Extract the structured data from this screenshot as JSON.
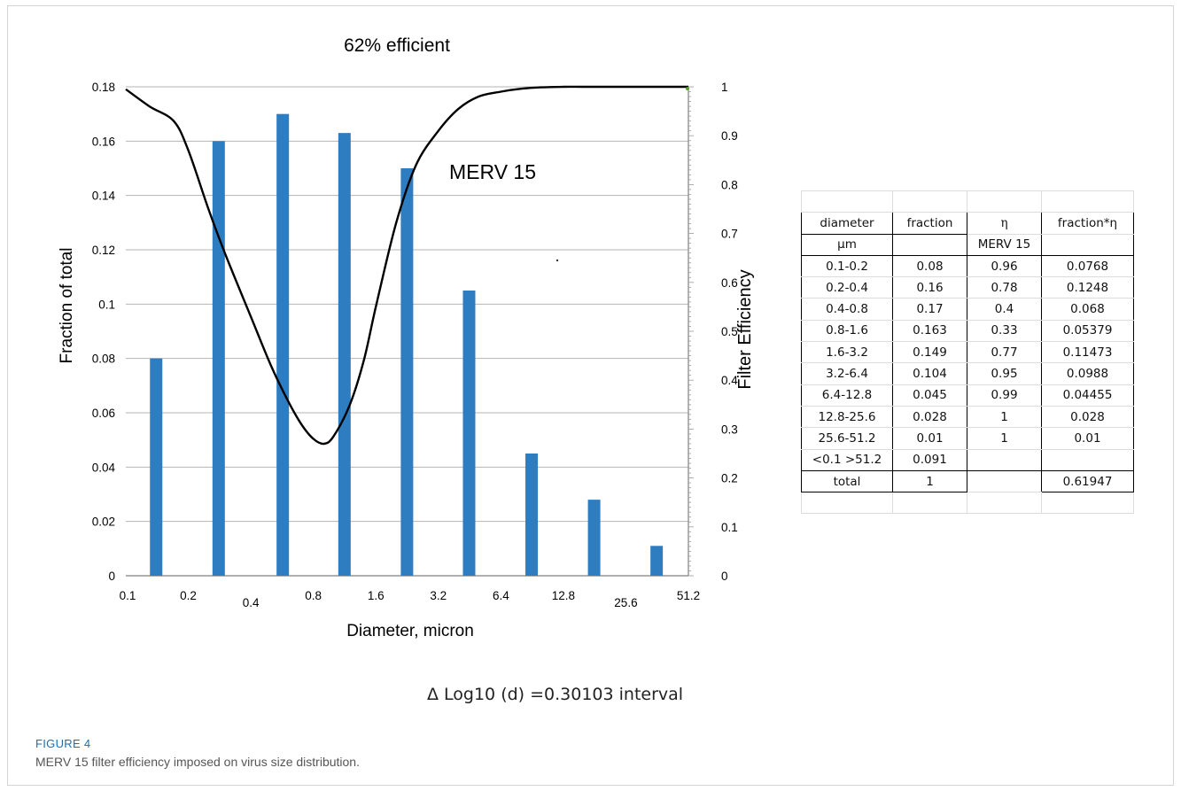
{
  "chart_data": {
    "type": "bar",
    "title": "62% efficient",
    "xlabel": "Diameter, micron",
    "ylabel": "Fraction of total",
    "y2label": "Filter Efficiency",
    "x_ticks": [
      "0.1",
      "0.2",
      "0.4",
      "0.8",
      "1.6",
      "3.2",
      "6.4",
      "12.8",
      "25.6",
      "51.2"
    ],
    "ylim": [
      0,
      0.18
    ],
    "y_ticks": [
      "0",
      "0.02",
      "0.04",
      "0.06",
      "0.08",
      "0.1",
      "0.12",
      "0.14",
      "0.16",
      "0.18"
    ],
    "y2lim": [
      0,
      1
    ],
    "y2_ticks": [
      "0",
      "0.1",
      "0.2",
      "0.3",
      "0.4",
      "0.5",
      "0.6",
      "0.7",
      "0.8",
      "0.9",
      "1"
    ],
    "grid": true,
    "series": [
      {
        "type": "bar",
        "color": "#2e7dc1",
        "x": [
          0.14,
          0.28,
          0.57,
          1.13,
          2.26,
          4.5,
          9.0,
          18.0,
          36.0
        ],
        "values": [
          0.08,
          0.16,
          0.17,
          0.163,
          0.15,
          0.105,
          0.045,
          0.028,
          0.011
        ]
      },
      {
        "type": "line",
        "name": "MERV 15",
        "axis": "y2",
        "color": "#000000",
        "x": [
          0.1,
          0.13,
          0.17,
          0.2,
          0.25,
          0.3,
          0.4,
          0.5,
          0.6,
          0.7,
          0.8,
          0.9,
          1.0,
          1.2,
          1.4,
          1.6,
          2.0,
          2.5,
          3.2,
          4.0,
          5.0,
          6.4,
          8.0,
          10.0,
          12.8,
          16.0,
          25.6,
          51.2
        ],
        "values": [
          0.995,
          0.96,
          0.93,
          0.87,
          0.75,
          0.66,
          0.53,
          0.43,
          0.36,
          0.31,
          0.28,
          0.27,
          0.285,
          0.35,
          0.44,
          0.55,
          0.72,
          0.84,
          0.91,
          0.955,
          0.98,
          0.99,
          0.996,
          0.999,
          1.0,
          1.0,
          1.0,
          1.0
        ]
      }
    ]
  },
  "table": {
    "rows": [
      [
        "diameter",
        "fraction",
        "η",
        "fraction*η"
      ],
      [
        "µm",
        "",
        "MERV 15",
        ""
      ],
      [
        "0.1-0.2",
        "0.08",
        "0.96",
        "0.0768"
      ],
      [
        "0.2-0.4",
        "0.16",
        "0.78",
        "0.1248"
      ],
      [
        "0.4-0.8",
        "0.17",
        "0.4",
        "0.068"
      ],
      [
        "0.8-1.6",
        "0.163",
        "0.33",
        "0.05379"
      ],
      [
        "1.6-3.2",
        "0.149",
        "0.77",
        "0.11473"
      ],
      [
        "3.2-6.4",
        "0.104",
        "0.95",
        "0.0988"
      ],
      [
        "6.4-12.8",
        "0.045",
        "0.99",
        "0.04455"
      ],
      [
        "12.8-25.6",
        "0.028",
        "1",
        "0.028"
      ],
      [
        "25.6-51.2",
        "0.01",
        "1",
        "0.01"
      ],
      [
        "<0.1 >51.2",
        "0.091",
        "",
        ""
      ],
      [
        "total",
        "1",
        "",
        "0.61947"
      ]
    ]
  },
  "note": "Δ Log10 (d) =0.30103 interval",
  "caption": {
    "label": "FIGURE 4",
    "text": "MERV 15 filter efficiency imposed on virus size distribution."
  }
}
